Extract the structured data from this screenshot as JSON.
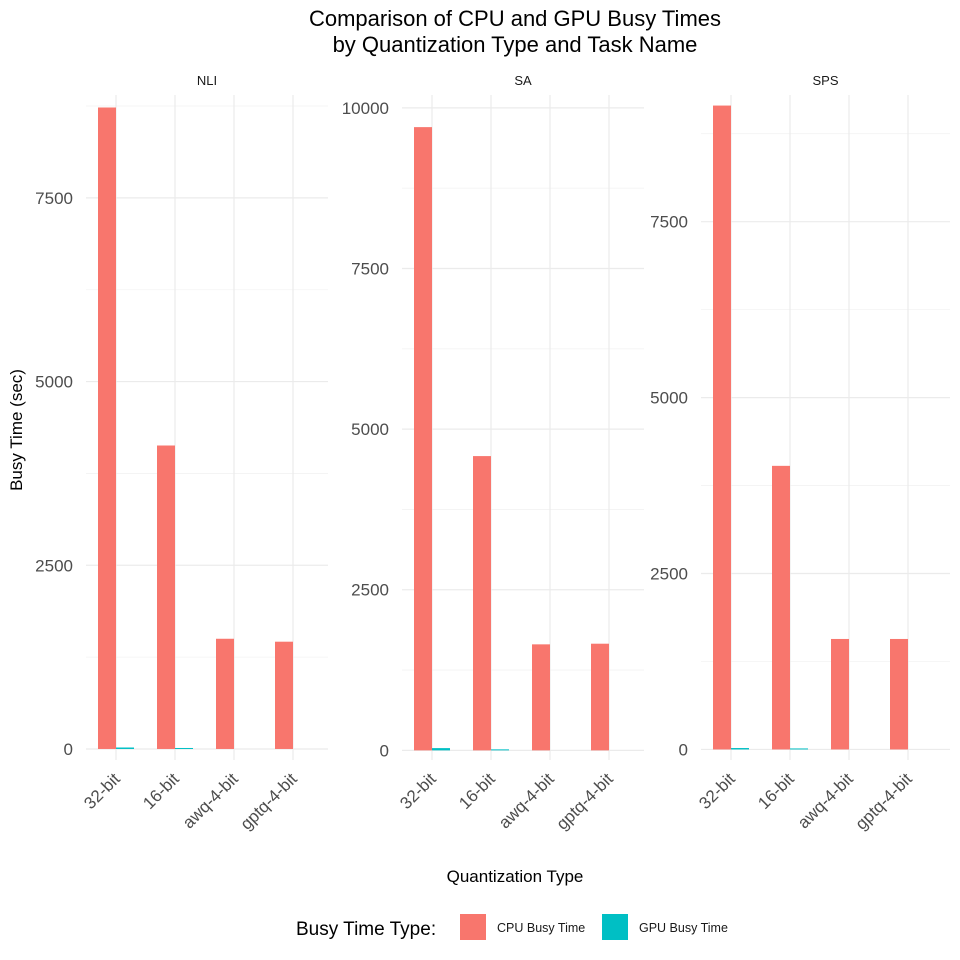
{
  "chart_data": {
    "type": "bar",
    "title": [
      "Comparison of CPU and GPU Busy Times",
      "by Quantization Type and Task Name"
    ],
    "xlabel": "Quantization Type",
    "ylabel": "Busy Time (sec)",
    "categories": [
      "32-bit",
      "16-bit",
      "awq-4-bit",
      "gptq-4-bit"
    ],
    "legend": {
      "title": "Busy Time Type:",
      "position": "bottom",
      "entries": [
        {
          "name": "CPU Busy Time",
          "color": "#F8766D"
        },
        {
          "name": "GPU Busy Time",
          "color": "#00BFC4"
        }
      ]
    },
    "facets": [
      {
        "name": "NLI",
        "ylim": [
          -150,
          8900
        ],
        "yticks": [
          0,
          2500,
          5000,
          7500
        ],
        "series": [
          {
            "name": "CPU Busy Time",
            "values": [
              8730,
              4130,
              1500,
              1460
            ]
          },
          {
            "name": "GPU Busy Time",
            "values": [
              20,
              5,
              0,
              0
            ]
          }
        ]
      },
      {
        "name": "SA",
        "ylim": [
          -150,
          10200
        ],
        "yticks": [
          0,
          2500,
          5000,
          7500,
          10000
        ],
        "series": [
          {
            "name": "CPU Busy Time",
            "values": [
              9700,
              4580,
              1650,
              1660
            ]
          },
          {
            "name": "GPU Busy Time",
            "values": [
              35,
              10,
              0,
              0
            ]
          }
        ]
      },
      {
        "name": "SPS",
        "ylim": [
          -150,
          9300
        ],
        "yticks": [
          0,
          2500,
          5000,
          7500
        ],
        "series": [
          {
            "name": "CPU Busy Time",
            "values": [
              9150,
              4030,
              1570,
              1570
            ]
          },
          {
            "name": "GPU Busy Time",
            "values": [
              20,
              5,
              0,
              0
            ]
          }
        ]
      }
    ],
    "grid": true
  }
}
